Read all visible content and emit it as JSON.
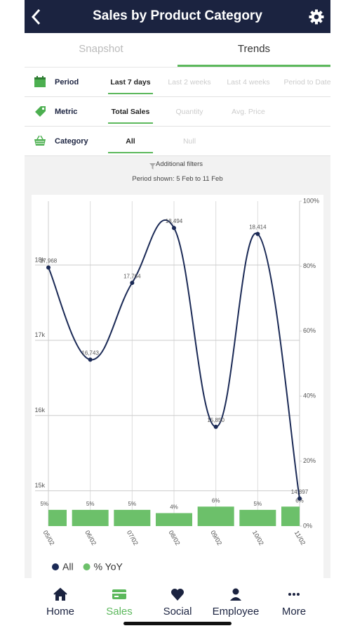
{
  "header": {
    "title": "Sales by Product Category"
  },
  "tabs": {
    "items": [
      "Snapshot",
      "Trends"
    ],
    "selected": 1
  },
  "filters": [
    {
      "label": "Period",
      "options": [
        "Last 7 days",
        "Last 2 weeks",
        "Last 4 weeks",
        "Period to Date"
      ],
      "selected": 0
    },
    {
      "label": "Metric",
      "options": [
        "Total Sales",
        "Quantity",
        "Avg. Price"
      ],
      "selected": 0
    },
    {
      "label": "Category",
      "options": [
        "All",
        "Null"
      ],
      "selected": 0
    }
  ],
  "additional_filters": "Additional filters",
  "period_shown": "Period shown: 5 Feb to 11 Feb",
  "chart_data": {
    "type": "combo",
    "categories": [
      "05/02",
      "06/02",
      "07/02",
      "08/02",
      "09/02",
      "10/02",
      "11/02"
    ],
    "series": [
      {
        "name": "All",
        "type": "line",
        "color": "#1b2a56",
        "values": [
          17968,
          16743,
          17764,
          18494,
          15850,
          18414,
          14897
        ],
        "value_labels": [
          "17,968",
          "16,743",
          "17,764",
          "18,494",
          "15,850",
          "18,414",
          "14,897"
        ]
      },
      {
        "name": "% YoY",
        "type": "bar",
        "axis": "y2",
        "color": "#6cc06a",
        "values": [
          5,
          5,
          5,
          4,
          6,
          5,
          6
        ],
        "value_labels": [
          "5%",
          "5%",
          "5%",
          "4%",
          "6%",
          "5%",
          "6%"
        ]
      }
    ],
    "ylim": [
      14530,
      18850
    ],
    "yticks": [
      {
        "value": 15000,
        "label": "15k"
      },
      {
        "value": 16000,
        "label": "16k"
      },
      {
        "value": 17000,
        "label": "17k"
      },
      {
        "value": 18000,
        "label": "18k"
      }
    ],
    "y2lim": [
      0,
      100
    ],
    "y2ticks": [
      {
        "value": 0,
        "label": "0%"
      },
      {
        "value": 20,
        "label": "20%"
      },
      {
        "value": 40,
        "label": "40%"
      },
      {
        "value": 60,
        "label": "60%"
      },
      {
        "value": 80,
        "label": "80%"
      },
      {
        "value": 100,
        "label": "100%"
      }
    ],
    "grid": true,
    "legend": "bottom-left"
  },
  "nav": {
    "items": [
      "Home",
      "Sales",
      "Social",
      "Employee",
      "More"
    ],
    "selected": 1
  }
}
